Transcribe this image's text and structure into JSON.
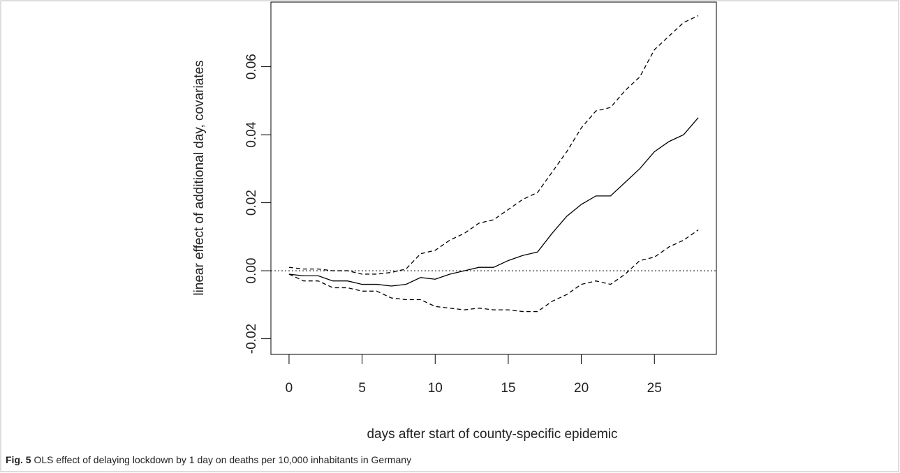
{
  "chart_data": {
    "type": "line",
    "x_label": "days after start of county-specific epidemic",
    "y_label": "linear effect of additional day, covariates",
    "caption_label": "Fig. 5",
    "caption_text": "OLS effect of delaying lockdown by 1 day on deaths per 10,000 inhabitants in Germany",
    "x": [
      0,
      1,
      2,
      3,
      4,
      5,
      6,
      7,
      8,
      9,
      10,
      11,
      12,
      13,
      14,
      15,
      16,
      17,
      18,
      19,
      20,
      21,
      22,
      23,
      24,
      25,
      26,
      27,
      28
    ],
    "series": [
      {
        "color": "#000000",
        "style": "solid",
        "values": [
          -0.001,
          -0.0015,
          -0.0015,
          -0.003,
          -0.003,
          -0.004,
          -0.004,
          -0.0045,
          -0.004,
          -0.002,
          -0.0025,
          -0.001,
          0.0,
          0.001,
          0.001,
          0.003,
          0.0045,
          0.0055,
          0.011,
          0.016,
          0.0195,
          0.022,
          0.022,
          0.026,
          0.03,
          0.035,
          0.038,
          0.04,
          0.045
        ]
      },
      {
        "color": "#000000",
        "style": "dashed",
        "values": [
          0.001,
          0.0005,
          0.0005,
          0.0,
          0.0,
          -0.001,
          -0.001,
          -0.0005,
          0.0005,
          0.005,
          0.006,
          0.009,
          0.011,
          0.014,
          0.015,
          0.018,
          0.021,
          0.023,
          0.029,
          0.035,
          0.042,
          0.047,
          0.048,
          0.053,
          0.057,
          0.065,
          0.069,
          0.073,
          0.075
        ]
      },
      {
        "color": "#000000",
        "style": "dashed",
        "values": [
          -0.001,
          -0.003,
          -0.003,
          -0.005,
          -0.005,
          -0.006,
          -0.006,
          -0.008,
          -0.0085,
          -0.0085,
          -0.0105,
          -0.011,
          -0.0115,
          -0.011,
          -0.0115,
          -0.0115,
          -0.012,
          -0.012,
          -0.009,
          -0.007,
          -0.004,
          -0.003,
          -0.004,
          -0.001,
          0.003,
          0.004,
          0.007,
          0.009,
          0.012
        ]
      }
    ],
    "reference_line": 0,
    "xlim": [
      -1.24,
      29.24
    ],
    "ylim": [
      -0.0246,
      0.079
    ],
    "xticks": [
      0,
      5,
      10,
      15,
      20,
      25
    ],
    "yticks": [
      -0.02,
      {
        "value": 0,
        "label": "0.00"
      },
      0.02,
      0.04,
      0.06
    ]
  }
}
